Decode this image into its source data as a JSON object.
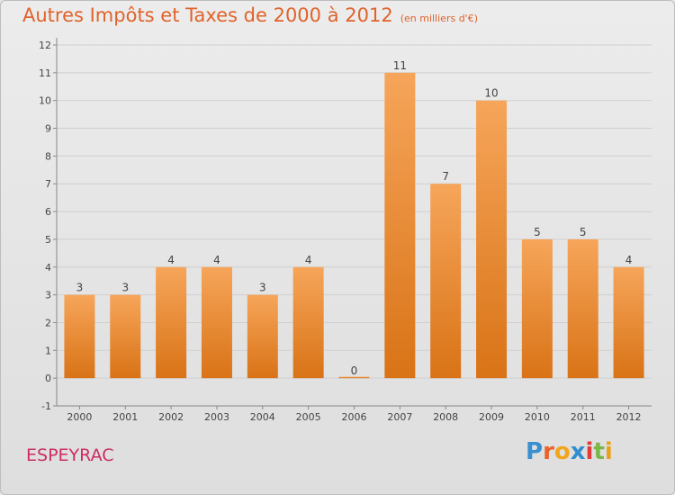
{
  "title": "Autres Impôts et Taxes de 2000 à 2012",
  "subtitle": "(en milliers d'€)",
  "commune": "ESPEYRAC",
  "brand": {
    "letters": [
      "P",
      "r",
      "o",
      "x",
      "i",
      "t",
      "i"
    ],
    "colors": [
      "#3a8fd0",
      "#e8622a",
      "#f2a51c",
      "#2f8ecf",
      "#e23b3b",
      "#7ab648",
      "#e8a21a"
    ]
  },
  "colors": {
    "bar_top": "#f6a55a",
    "bar_bottom": "#d97316",
    "title": "#e0632b",
    "commune": "#cc2c62"
  },
  "chart_data": {
    "type": "bar",
    "categories": [
      "2000",
      "2001",
      "2002",
      "2003",
      "2004",
      "2005",
      "2006",
      "2007",
      "2008",
      "2009",
      "2010",
      "2011",
      "2012"
    ],
    "values": [
      3,
      3,
      4,
      4,
      3,
      4,
      0,
      11,
      7,
      10,
      5,
      5,
      4
    ],
    "y_ticks": [
      "-1",
      "0",
      "1",
      "2",
      "3",
      "4",
      "5",
      "6",
      "7",
      "8",
      "9",
      "10",
      "11",
      "12"
    ],
    "ylim": [
      -1,
      12
    ],
    "grid": true
  }
}
